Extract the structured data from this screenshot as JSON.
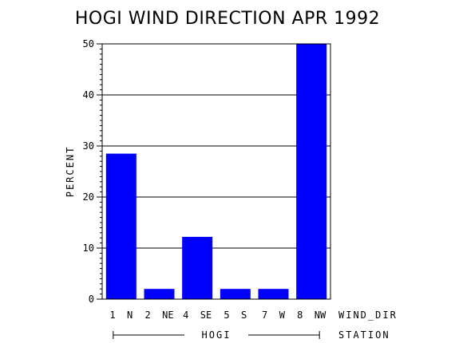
{
  "chart_data": {
    "type": "bar",
    "title": "HOGI WIND DIRECTION APR 1992",
    "ylabel": "PERCENT",
    "xlabel": "WIND_DIR",
    "group_axis_label": "STATION",
    "group_label": "HOGI",
    "categories": [
      "1  N",
      "2  NE",
      "4  SE",
      "5  S",
      "7  W",
      "8  NW"
    ],
    "values": [
      28.5,
      2.0,
      12.2,
      2.0,
      2.0,
      50.0
    ],
    "ylim": [
      0,
      50
    ],
    "yticks": [
      0,
      10,
      20,
      30,
      40,
      50
    ],
    "grid": true,
    "bar_color": "#0000ff"
  }
}
